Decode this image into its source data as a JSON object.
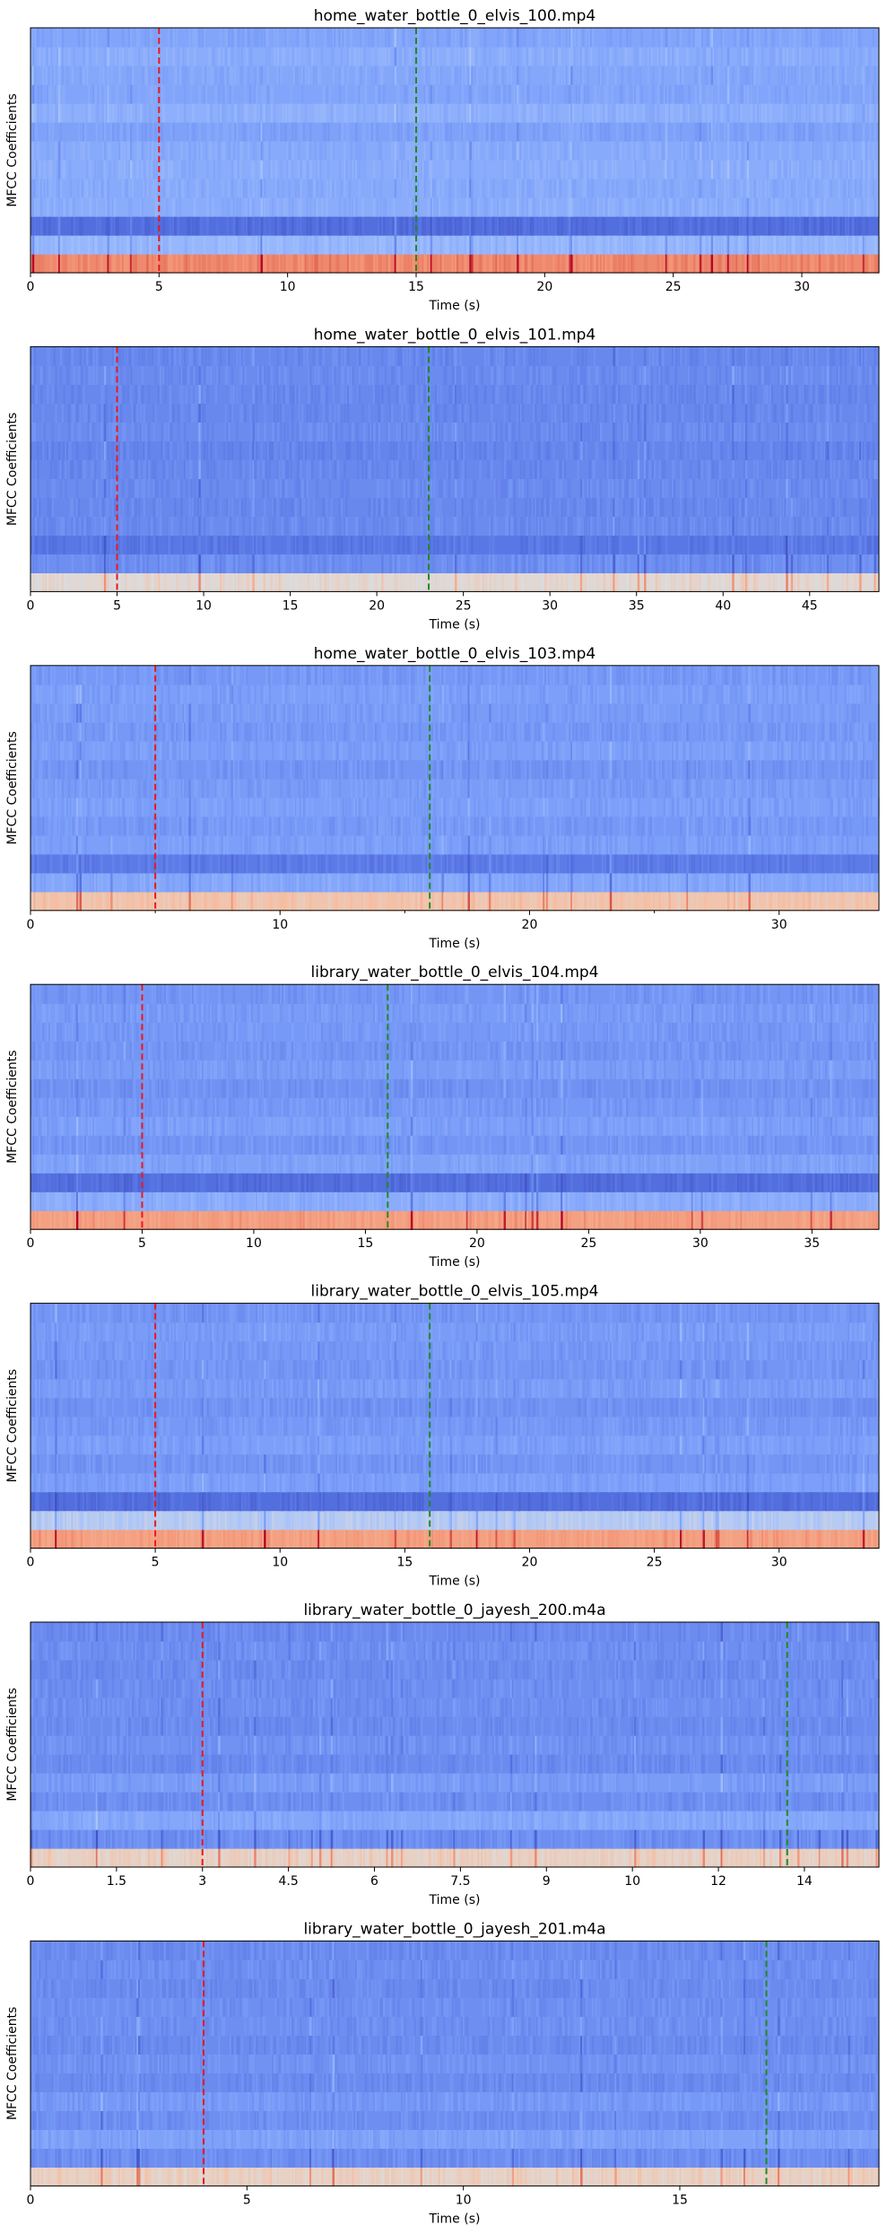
{
  "chart_data": [
    {
      "type": "heatmap",
      "title": "home_water_bottle_0_elvis_100.mp4",
      "xlabel": "Time (s)",
      "ylabel": "MFCC Coefficients",
      "xlim": [
        0,
        33
      ],
      "xticks": [
        0,
        5,
        10,
        15,
        20,
        25,
        30
      ],
      "tick_labels": [
        "0",
        "5",
        "10",
        "15",
        "20",
        "25",
        "30"
      ],
      "markers": [
        {
          "x": 5,
          "color": "#e8191b"
        },
        {
          "x": 15,
          "color": "#218a21"
        }
      ],
      "n_coefficients": 13,
      "row_levels": [
        0.78,
        0.34,
        0.1,
        0.3,
        0.29,
        0.3,
        0.29,
        0.26,
        0.31,
        0.27,
        0.28,
        0.3,
        0.27
      ],
      "colormap": "coolwarm"
    },
    {
      "type": "heatmap",
      "title": "home_water_bottle_0_elvis_101.mp4",
      "xlabel": "Time (s)",
      "ylabel": "MFCC Coefficients",
      "xlim": [
        0,
        49
      ],
      "xticks": [
        0,
        5,
        10,
        15,
        20,
        25,
        30,
        35,
        40,
        45
      ],
      "tick_labels": [
        "0",
        "5",
        "10",
        "15",
        "20",
        "25",
        "30",
        "35",
        "40",
        "45"
      ],
      "markers": [
        {
          "x": 5,
          "color": "#e8191b"
        },
        {
          "x": 23,
          "color": "#218a21"
        }
      ],
      "n_coefficients": 13,
      "row_levels": [
        0.52,
        0.2,
        0.13,
        0.19,
        0.18,
        0.19,
        0.18,
        0.17,
        0.19,
        0.18,
        0.18,
        0.19,
        0.18
      ],
      "colormap": "coolwarm"
    },
    {
      "type": "heatmap",
      "title": "home_water_bottle_0_elvis_103.mp4",
      "xlabel": "Time (s)",
      "ylabel": "MFCC Coefficients",
      "xlim": [
        0,
        34
      ],
      "xticks": [
        0,
        10,
        20,
        30
      ],
      "tick_labels": [
        "0",
        "10",
        "20",
        "30"
      ],
      "minor_ticks": [
        5,
        15,
        25
      ],
      "markers": [
        {
          "x": 5,
          "color": "#e8191b"
        },
        {
          "x": 16,
          "color": "#218a21"
        }
      ],
      "n_coefficients": 13,
      "row_levels": [
        0.6,
        0.28,
        0.14,
        0.25,
        0.23,
        0.25,
        0.24,
        0.22,
        0.25,
        0.23,
        0.24,
        0.25,
        0.23
      ],
      "colormap": "coolwarm"
    },
    {
      "type": "heatmap",
      "title": "library_water_bottle_0_elvis_104.mp4",
      "xlabel": "Time (s)",
      "ylabel": "MFCC Coefficients",
      "xlim": [
        0,
        38
      ],
      "xticks": [
        0,
        5,
        10,
        15,
        20,
        25,
        30,
        35
      ],
      "tick_labels": [
        "0",
        "5",
        "10",
        "15",
        "20",
        "25",
        "30",
        "35"
      ],
      "markers": [
        {
          "x": 5,
          "color": "#e8191b"
        },
        {
          "x": 16,
          "color": "#218a21"
        }
      ],
      "n_coefficients": 13,
      "row_levels": [
        0.72,
        0.3,
        0.1,
        0.26,
        0.22,
        0.25,
        0.23,
        0.21,
        0.24,
        0.22,
        0.23,
        0.24,
        0.22
      ],
      "colormap": "coolwarm"
    },
    {
      "type": "heatmap",
      "title": "library_water_bottle_0_elvis_105.mp4",
      "xlabel": "Time (s)",
      "ylabel": "MFCC Coefficients",
      "xlim": [
        0,
        34
      ],
      "xticks": [
        0,
        5,
        10,
        15,
        20,
        25,
        30
      ],
      "tick_labels": [
        "0",
        "5",
        "10",
        "15",
        "20",
        "25",
        "30"
      ],
      "markers": [
        {
          "x": 5,
          "color": "#e8191b"
        },
        {
          "x": 16,
          "color": "#218a21"
        }
      ],
      "n_coefficients": 13,
      "row_levels": [
        0.72,
        0.42,
        0.1,
        0.25,
        0.22,
        0.25,
        0.23,
        0.21,
        0.24,
        0.22,
        0.23,
        0.24,
        0.22
      ],
      "colormap": "coolwarm"
    },
    {
      "type": "heatmap",
      "title": "library_water_bottle_0_jayesh_200.m4a",
      "xlabel": "Time (s)",
      "ylabel": "MFCC Coefficients",
      "xlim": [
        0,
        14.8
      ],
      "xticks": [
        0,
        1.5,
        3,
        4.5,
        6,
        7.5,
        9,
        10.5,
        12,
        13.5
      ],
      "tick_labels": [
        "0",
        "1.5",
        "3",
        "4.5",
        "6",
        "7.5",
        "9",
        "10",
        "12",
        "14"
      ],
      "markers": [
        {
          "x": 3,
          "color": "#e8191b"
        },
        {
          "x": 13.2,
          "color": "#218a21"
        }
      ],
      "n_coefficients": 13,
      "row_levels": [
        0.55,
        0.2,
        0.28,
        0.2,
        0.24,
        0.19,
        0.21,
        0.19,
        0.2,
        0.2,
        0.19,
        0.2,
        0.19
      ],
      "colormap": "coolwarm"
    },
    {
      "type": "heatmap",
      "title": "library_water_bottle_0_jayesh_201.m4a",
      "xlabel": "Time (s)",
      "ylabel": "MFCC Coefficients",
      "xlim": [
        0,
        19.6
      ],
      "xticks": [
        0,
        5,
        10,
        15
      ],
      "tick_labels": [
        "0",
        "5",
        "10",
        "15"
      ],
      "markers": [
        {
          "x": 4,
          "color": "#e8191b"
        },
        {
          "x": 17,
          "color": "#218a21"
        }
      ],
      "n_coefficients": 13,
      "row_levels": [
        0.55,
        0.2,
        0.26,
        0.2,
        0.23,
        0.19,
        0.21,
        0.19,
        0.2,
        0.2,
        0.19,
        0.2,
        0.19
      ],
      "colormap": "coolwarm"
    }
  ]
}
